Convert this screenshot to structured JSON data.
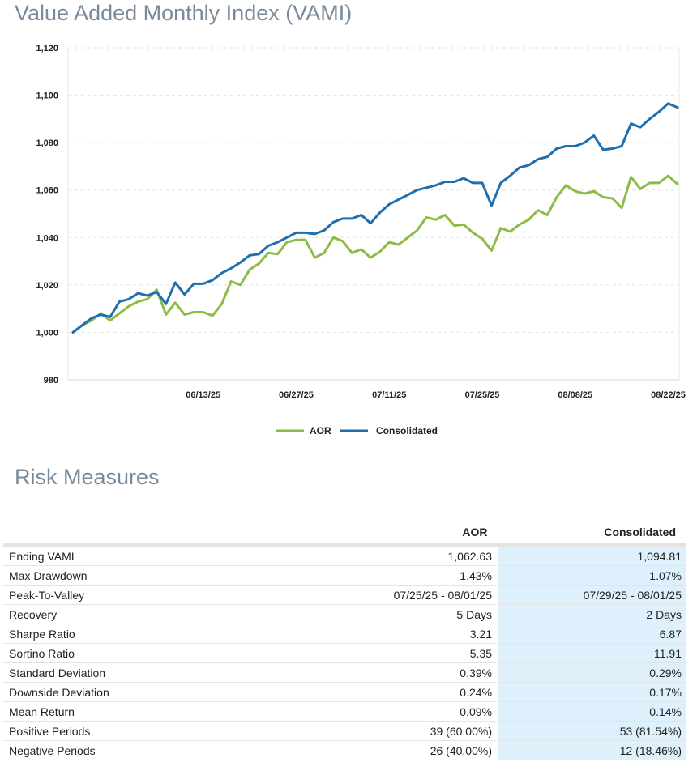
{
  "vami_section": {
    "title": "Value Added Monthly Index (VAMI)"
  },
  "chart_data": {
    "type": "line",
    "title": "",
    "xlabel": "",
    "ylabel": "",
    "ylim": [
      980,
      1120
    ],
    "y_ticks": [
      "1,120",
      "1,100",
      "1,080",
      "1,060",
      "1,040",
      "1,020",
      "1,000",
      "980"
    ],
    "y_tick_values": [
      1120,
      1100,
      1080,
      1060,
      1040,
      1020,
      1000,
      980
    ],
    "x_tick_labels": [
      "06/13/25",
      "06/27/25",
      "07/11/25",
      "07/25/25",
      "08/08/25",
      "08/22/25"
    ],
    "x_tick_index": [
      14,
      24,
      34,
      44,
      54,
      64
    ],
    "grid": "horizontal dashed",
    "legend_position": "bottom-center",
    "series": [
      {
        "name": "AOR",
        "color": "#8dbb47",
        "values": [
          1000,
          1003,
          1005,
          1008,
          1005,
          1008,
          1011,
          1013,
          1014,
          1018,
          1007.5,
          1012.5,
          1007.5,
          1008.5,
          1008.5,
          1007,
          1012,
          1021.5,
          1020,
          1026.5,
          1029,
          1033.5,
          1033,
          1038,
          1039,
          1039,
          1031.5,
          1033.5,
          1040,
          1038.5,
          1033.5,
          1035,
          1031.5,
          1034,
          1038,
          1037,
          1040,
          1043,
          1048.5,
          1047.5,
          1049.5,
          1045,
          1045.5,
          1042,
          1039.5,
          1034.5,
          1044,
          1042.5,
          1045.5,
          1047.5,
          1051.5,
          1049.5,
          1057,
          1062,
          1059.5,
          1058.5,
          1059.5,
          1057,
          1056.5,
          1052.5,
          1065.5,
          1060.5,
          1063,
          1063,
          1066,
          1062.5
        ]
      },
      {
        "name": "Consolidated",
        "color": "#1f6fae",
        "values": [
          1000,
          1003,
          1006,
          1007.5,
          1006.5,
          1013,
          1014,
          1016.5,
          1015.5,
          1017,
          1012,
          1021,
          1016,
          1020.5,
          1020.5,
          1022,
          1025,
          1027,
          1029.5,
          1032.5,
          1033,
          1036.5,
          1038,
          1040,
          1042,
          1042,
          1041.5,
          1043,
          1046.5,
          1048,
          1048,
          1049.5,
          1046,
          1050.5,
          1054,
          1056,
          1058,
          1060,
          1061,
          1062,
          1063.5,
          1063.5,
          1065,
          1063,
          1063,
          1053.5,
          1063,
          1066,
          1069.5,
          1070.5,
          1073,
          1074,
          1077.5,
          1078.5,
          1078.5,
          1080,
          1083,
          1077,
          1077.5,
          1078.5,
          1088,
          1086.5,
          1090,
          1093,
          1096.5,
          1094.81
        ]
      }
    ]
  },
  "legend": {
    "aor_label": "AOR",
    "cons_label": "Consolidated"
  },
  "risk_section": {
    "title": "Risk Measures",
    "col_aor": "AOR",
    "col_cons": "Consolidated",
    "rows": [
      {
        "label": "Ending VAMI",
        "aor": "1,062.63",
        "cons": "1,094.81"
      },
      {
        "label": "Max Drawdown",
        "aor": "1.43%",
        "cons": "1.07%"
      },
      {
        "label": "Peak-To-Valley",
        "aor": "07/25/25 - 08/01/25",
        "cons": "07/29/25 - 08/01/25"
      },
      {
        "label": "Recovery",
        "aor": "5 Days",
        "cons": "2 Days"
      },
      {
        "label": "Sharpe Ratio",
        "aor": "3.21",
        "cons": "6.87"
      },
      {
        "label": "Sortino Ratio",
        "aor": "5.35",
        "cons": "11.91"
      },
      {
        "label": "Standard Deviation",
        "aor": "0.39%",
        "cons": "0.29%"
      },
      {
        "label": "Downside Deviation",
        "aor": "0.24%",
        "cons": "0.17%"
      },
      {
        "label": "Mean Return",
        "aor": "0.09%",
        "cons": "0.14%"
      },
      {
        "label": "Positive Periods",
        "aor": "39 (60.00%)",
        "cons": "53 (81.54%)"
      },
      {
        "label": "Negative Periods",
        "aor": "26 (40.00%)",
        "cons": "12 (18.46%)"
      }
    ]
  }
}
